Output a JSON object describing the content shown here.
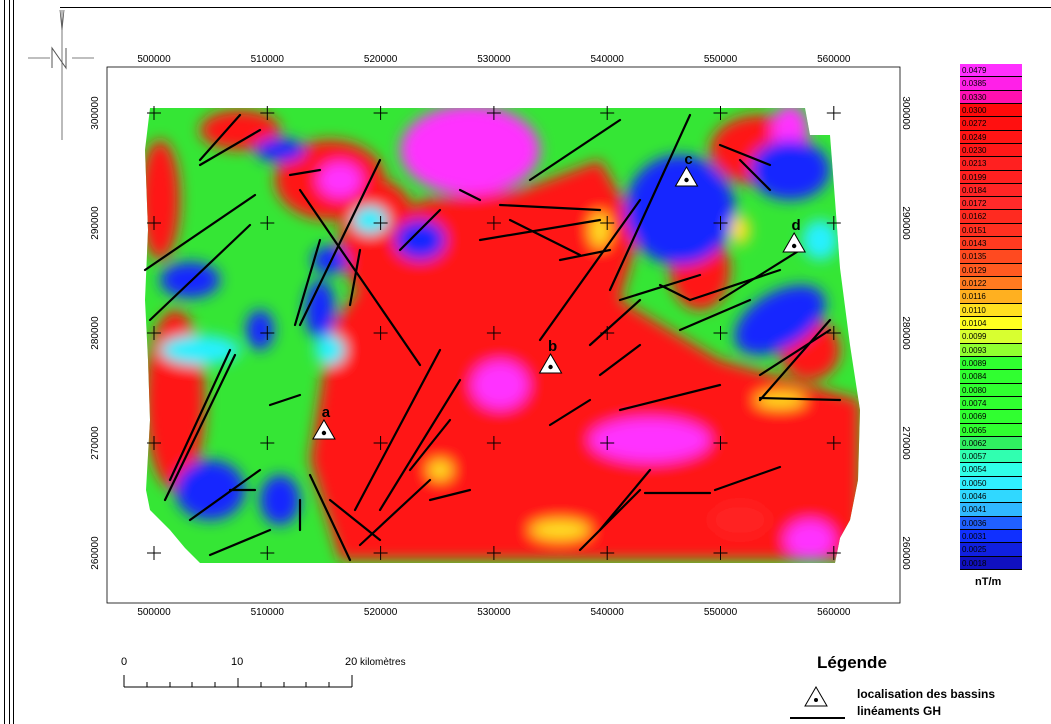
{
  "map": {
    "x_ticks": [
      "500000",
      "510000",
      "520000",
      "530000",
      "540000",
      "550000",
      "560000"
    ],
    "y_ticks": [
      "300000",
      "290000",
      "280000",
      "270000",
      "260000"
    ],
    "basins": [
      {
        "label": "a",
        "x": 515000,
        "y": 271000
      },
      {
        "label": "b",
        "x": 535000,
        "y": 277000
      },
      {
        "label": "c",
        "x": 547000,
        "y": 294000
      },
      {
        "label": "d",
        "x": 556500,
        "y": 288000
      }
    ]
  },
  "colorbar": {
    "values": [
      "0.0479",
      "0.0385",
      "0.0330",
      "0.0300",
      "0.0272",
      "0.0249",
      "0.0230",
      "0.0213",
      "0.0199",
      "0.0184",
      "0.0172",
      "0.0162",
      "0.0151",
      "0.0143",
      "0.0135",
      "0.0129",
      "0.0122",
      "0.0116",
      "0.0110",
      "0.0104",
      "0.0099",
      "0.0093",
      "0.0089",
      "0.0084",
      "0.0080",
      "0.0074",
      "0.0069",
      "0.0065",
      "0.0062",
      "0.0057",
      "0.0054",
      "0.0050",
      "0.0046",
      "0.0041",
      "0.0036",
      "0.0031",
      "0.0025",
      "0.0018"
    ],
    "colors": [
      "#ff30ff",
      "#ff20e8",
      "#ff10b0",
      "#ff0a0a",
      "#ff1010",
      "#ff1515",
      "#ff1818",
      "#ff2020",
      "#ff2020",
      "#ff2525",
      "#ff2a2a",
      "#ff2a20",
      "#ff3020",
      "#ff3a20",
      "#ff4a20",
      "#ff5a20",
      "#ff7a20",
      "#ffb020",
      "#ffe020",
      "#ffff20",
      "#d8ff30",
      "#90ff30",
      "#30ff30",
      "#30ff30",
      "#30ff30",
      "#30ff30",
      "#30ff30",
      "#30ff30",
      "#30f060",
      "#30ffb0",
      "#30ffe8",
      "#30f0ff",
      "#30d8ff",
      "#30b8ff",
      "#2060ff",
      "#1030ff",
      "#1020e0",
      "#1010c0"
    ],
    "unit": "nT/m"
  },
  "scale": {
    "numbers": [
      "0",
      "10",
      "20"
    ],
    "unit": "kilomètres"
  },
  "legend": {
    "title": "Légende",
    "basin_label": "localisation des bassins",
    "lineament_label": "linéaments GH"
  }
}
